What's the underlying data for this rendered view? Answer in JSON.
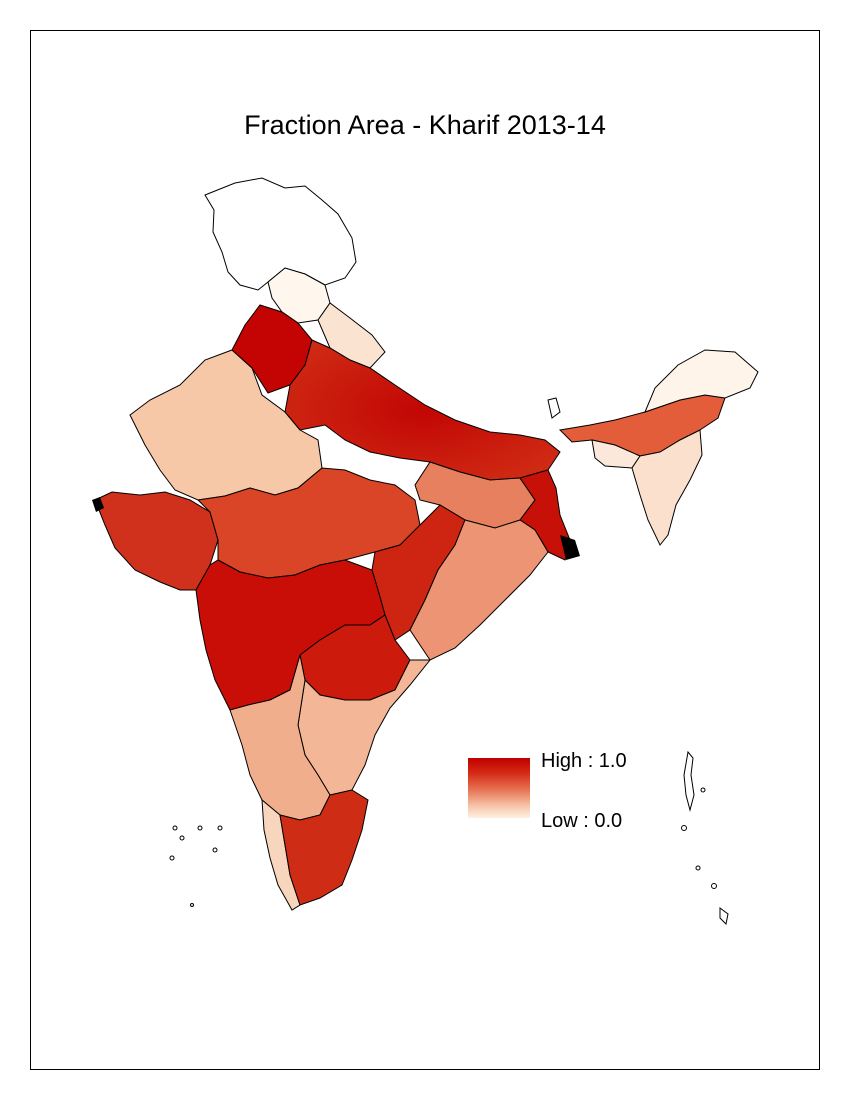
{
  "title": "Fraction Area - Kharif 2013-14",
  "legend": {
    "high_label": "High : 1.0",
    "low_label": "Low : 0.0",
    "high_value": 1.0,
    "low_value": 0.0,
    "ramp_colors": [
      "#c00000",
      "#e8795a",
      "#fff1e2"
    ]
  },
  "colors": {
    "outline": "#000000",
    "background": "#ffffff"
  }
}
